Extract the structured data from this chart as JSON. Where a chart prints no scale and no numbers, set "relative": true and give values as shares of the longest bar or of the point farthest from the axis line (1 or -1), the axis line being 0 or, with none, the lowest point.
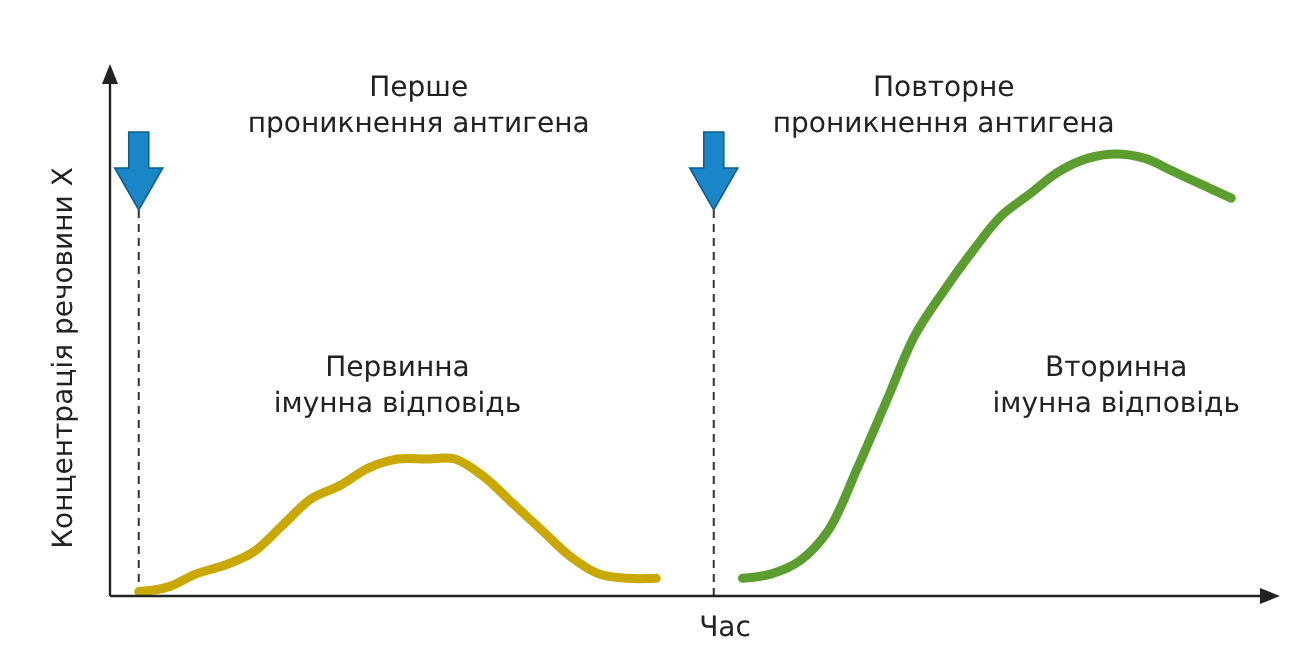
{
  "chart_data": {
    "type": "line",
    "relative": true,
    "xlabel": "Час",
    "ylabel": "Концентрація речовини X",
    "categories": [
      null,
      null,
      null,
      null,
      null,
      null,
      null,
      null,
      null,
      null,
      null,
      null,
      null,
      null,
      null,
      null,
      null,
      null,
      null,
      null,
      null,
      null,
      null,
      null,
      null,
      null,
      null,
      null,
      null,
      null,
      null,
      null,
      null,
      null,
      null,
      null,
      null,
      null,
      null,
      null,
      null
    ],
    "series": [
      {
        "color": "#c9a800",
        "values": [
          null,
          0.01,
          0.02,
          0.05,
          0.07,
          0.1,
          0.16,
          0.22,
          0.25,
          0.29,
          0.31,
          0.31,
          0.31,
          0.27,
          0.21,
          0.15,
          0.09,
          0.05,
          0.04,
          0.04,
          null,
          null,
          null,
          null,
          null,
          null,
          null,
          null,
          null,
          null,
          null,
          null,
          null,
          null,
          null,
          null,
          null,
          null,
          null,
          null,
          null
        ]
      },
      {
        "color": "#5b9e2f",
        "values": [
          null,
          null,
          null,
          null,
          null,
          null,
          null,
          null,
          null,
          null,
          null,
          null,
          null,
          null,
          null,
          null,
          null,
          null,
          null,
          null,
          null,
          null,
          0.04,
          0.05,
          0.08,
          0.15,
          0.29,
          0.44,
          0.59,
          0.69,
          0.78,
          0.86,
          0.91,
          0.96,
          0.99,
          1,
          0.99,
          0.96,
          0.93,
          0.9,
          null
        ]
      }
    ],
    "annotations": [
      "Перше\nпроникнення антигена",
      "Повторне\nпроникнення антигена",
      "Первинна\nімунна відповідь",
      "Вторинна\nімунна відповідь"
    ],
    "grid": false,
    "marker": "none",
    "line_style": "solid"
  }
}
